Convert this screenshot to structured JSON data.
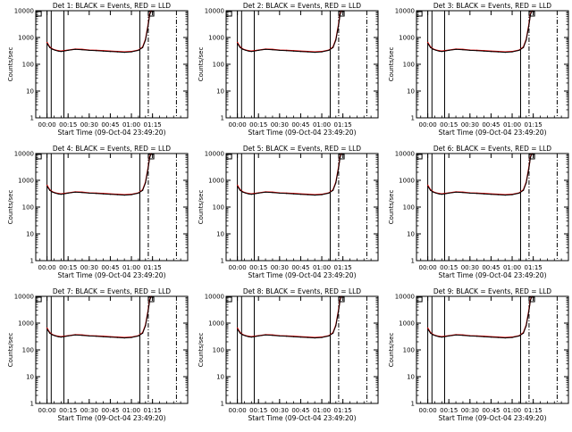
{
  "chart_data": [
    {
      "type": "line",
      "title": "Det 1: BLACK = Events, RED = LLD",
      "xlabel": "Start Time (09-Oct-04 23:49:20)",
      "ylabel": "Counts/sec",
      "yscale": "log",
      "ylim": [
        1,
        10000
      ],
      "y_ticks": [
        "1",
        "10",
        "100",
        "1000",
        "10000"
      ],
      "x_ticks": [
        "00:00",
        "00:15",
        "00:30",
        "00:45",
        "01:00",
        "01:15"
      ],
      "x": [
        0,
        2,
        4,
        6,
        8,
        10,
        12,
        15,
        20,
        25,
        30,
        35,
        40,
        45,
        50,
        55,
        60,
        65,
        68,
        70,
        72,
        73,
        74
      ],
      "series": [
        {
          "color": "#000000",
          "values": [
            600,
            420,
            360,
            330,
            310,
            300,
            310,
            330,
            360,
            350,
            330,
            320,
            310,
            300,
            290,
            280,
            290,
            330,
            420,
            800,
            3000,
            7000,
            10000
          ]
        },
        {
          "color": "#e00000",
          "values": [
            650,
            440,
            370,
            340,
            320,
            310,
            320,
            340,
            370,
            360,
            340,
            330,
            320,
            310,
            300,
            290,
            300,
            340,
            440,
            850,
            3200,
            7500,
            10000
          ]
        }
      ],
      "markers": [
        {
          "style": "solid",
          "x": 0
        },
        {
          "style": "solid",
          "x": 3
        },
        {
          "style": "solid",
          "x": 12
        },
        {
          "style": "solid",
          "x": 66
        },
        {
          "style": "dashdot",
          "x": 72
        },
        {
          "style": "dashdot",
          "x": 92
        }
      ]
    },
    {
      "type": "line",
      "title": "Det 2: BLACK = Events, RED = LLD",
      "xlabel": "Start Time (09-Oct-04 23:49:20)",
      "ylabel": "Counts/sec",
      "yscale": "log",
      "ylim": [
        1,
        10000
      ],
      "y_ticks": [
        "1",
        "10",
        "100",
        "1000",
        "10000"
      ],
      "x_ticks": [
        "00:00",
        "00:15",
        "00:30",
        "00:45",
        "01:00",
        "01:15"
      ],
      "x": [
        0,
        2,
        4,
        6,
        8,
        10,
        12,
        15,
        20,
        25,
        30,
        35,
        40,
        45,
        50,
        55,
        60,
        65,
        68,
        70,
        72,
        73,
        74
      ],
      "series": [
        {
          "color": "#000000",
          "values": [
            600,
            420,
            360,
            330,
            310,
            300,
            310,
            330,
            360,
            350,
            330,
            320,
            310,
            300,
            290,
            280,
            290,
            330,
            420,
            800,
            3000,
            7000,
            10000
          ]
        },
        {
          "color": "#e00000",
          "values": [
            650,
            440,
            370,
            340,
            320,
            310,
            320,
            340,
            370,
            360,
            340,
            330,
            320,
            310,
            300,
            290,
            300,
            340,
            440,
            850,
            3200,
            7500,
            10000
          ]
        }
      ],
      "markers": [
        {
          "style": "solid",
          "x": 0
        },
        {
          "style": "solid",
          "x": 3
        },
        {
          "style": "solid",
          "x": 12
        },
        {
          "style": "solid",
          "x": 66
        },
        {
          "style": "dashdot",
          "x": 72
        },
        {
          "style": "dashdot",
          "x": 92
        }
      ]
    },
    {
      "type": "line",
      "title": "Det 3: BLACK = Events, RED = LLD",
      "xlabel": "Start Time (09-Oct-04 23:49:20)",
      "ylabel": "Counts/sec",
      "yscale": "log",
      "ylim": [
        1,
        10000
      ],
      "y_ticks": [
        "1",
        "10",
        "100",
        "1000",
        "10000"
      ],
      "x_ticks": [
        "00:00",
        "00:15",
        "00:30",
        "00:45",
        "01:00",
        "01:15"
      ],
      "x": [
        0,
        2,
        4,
        6,
        8,
        10,
        12,
        15,
        20,
        25,
        30,
        35,
        40,
        45,
        50,
        55,
        60,
        65,
        68,
        70,
        72,
        73,
        74
      ],
      "series": [
        {
          "color": "#000000",
          "values": [
            600,
            420,
            360,
            330,
            310,
            300,
            310,
            330,
            360,
            350,
            330,
            320,
            310,
            300,
            290,
            280,
            290,
            330,
            420,
            800,
            3000,
            7000,
            10000
          ]
        },
        {
          "color": "#e00000",
          "values": [
            650,
            440,
            370,
            340,
            320,
            310,
            320,
            340,
            370,
            360,
            340,
            330,
            320,
            310,
            300,
            290,
            300,
            340,
            440,
            850,
            3200,
            7500,
            10000
          ]
        }
      ],
      "markers": [
        {
          "style": "solid",
          "x": 0
        },
        {
          "style": "solid",
          "x": 3
        },
        {
          "style": "solid",
          "x": 12
        },
        {
          "style": "solid",
          "x": 66
        },
        {
          "style": "dashdot",
          "x": 72
        },
        {
          "style": "dashdot",
          "x": 92
        }
      ]
    },
    {
      "type": "line",
      "title": "Det 4: BLACK = Events, RED = LLD",
      "xlabel": "Start Time (09-Oct-04 23:49:20)",
      "ylabel": "Counts/sec",
      "yscale": "log",
      "ylim": [
        1,
        10000
      ],
      "y_ticks": [
        "1",
        "10",
        "100",
        "1000",
        "10000"
      ],
      "x_ticks": [
        "00:00",
        "00:15",
        "00:30",
        "00:45",
        "01:00",
        "01:15"
      ],
      "x": [
        0,
        2,
        4,
        6,
        8,
        10,
        12,
        15,
        20,
        25,
        30,
        35,
        40,
        45,
        50,
        55,
        60,
        65,
        68,
        70,
        72,
        73,
        74
      ],
      "series": [
        {
          "color": "#000000",
          "values": [
            600,
            420,
            360,
            330,
            310,
            300,
            310,
            330,
            360,
            350,
            330,
            320,
            310,
            300,
            290,
            280,
            290,
            330,
            420,
            800,
            3000,
            7000,
            10000
          ]
        },
        {
          "color": "#e00000",
          "values": [
            650,
            440,
            370,
            340,
            320,
            310,
            320,
            340,
            370,
            360,
            340,
            330,
            320,
            310,
            300,
            290,
            300,
            340,
            440,
            850,
            3200,
            7500,
            10000
          ]
        }
      ],
      "markers": [
        {
          "style": "solid",
          "x": 0
        },
        {
          "style": "solid",
          "x": 3
        },
        {
          "style": "solid",
          "x": 12
        },
        {
          "style": "solid",
          "x": 66
        },
        {
          "style": "dashdot",
          "x": 72
        },
        {
          "style": "dashdot",
          "x": 92
        }
      ]
    },
    {
      "type": "line",
      "title": "Det 5: BLACK = Events, RED = LLD",
      "xlabel": "Start Time (09-Oct-04 23:49:20)",
      "ylabel": "Counts/sec",
      "yscale": "log",
      "ylim": [
        1,
        10000
      ],
      "y_ticks": [
        "1",
        "10",
        "100",
        "1000",
        "10000"
      ],
      "x_ticks": [
        "00:00",
        "00:15",
        "00:30",
        "00:45",
        "01:00",
        "01:15"
      ],
      "x": [
        0,
        2,
        4,
        6,
        8,
        10,
        12,
        15,
        20,
        25,
        30,
        35,
        40,
        45,
        50,
        55,
        60,
        65,
        68,
        70,
        72,
        73,
        74
      ],
      "series": [
        {
          "color": "#000000",
          "values": [
            600,
            420,
            360,
            330,
            310,
            300,
            310,
            330,
            360,
            350,
            330,
            320,
            310,
            300,
            290,
            280,
            290,
            330,
            420,
            800,
            3000,
            7000,
            10000
          ]
        },
        {
          "color": "#e00000",
          "values": [
            650,
            440,
            370,
            340,
            320,
            310,
            320,
            340,
            370,
            360,
            340,
            330,
            320,
            310,
            300,
            290,
            300,
            340,
            440,
            850,
            3200,
            7500,
            10000
          ]
        }
      ],
      "markers": [
        {
          "style": "solid",
          "x": 0
        },
        {
          "style": "solid",
          "x": 3
        },
        {
          "style": "solid",
          "x": 12
        },
        {
          "style": "solid",
          "x": 66
        },
        {
          "style": "dashdot",
          "x": 72
        },
        {
          "style": "dashdot",
          "x": 92
        }
      ]
    },
    {
      "type": "line",
      "title": "Det 6: BLACK = Events, RED = LLD",
      "xlabel": "Start Time (09-Oct-04 23:49:20)",
      "ylabel": "Counts/sec",
      "yscale": "log",
      "ylim": [
        1,
        10000
      ],
      "y_ticks": [
        "1",
        "10",
        "100",
        "1000",
        "10000"
      ],
      "x_ticks": [
        "00:00",
        "00:15",
        "00:30",
        "00:45",
        "01:00",
        "01:15"
      ],
      "x": [
        0,
        2,
        4,
        6,
        8,
        10,
        12,
        15,
        20,
        25,
        30,
        35,
        40,
        45,
        50,
        55,
        60,
        65,
        68,
        70,
        72,
        73,
        74
      ],
      "series": [
        {
          "color": "#000000",
          "values": [
            600,
            420,
            360,
            330,
            310,
            300,
            310,
            330,
            360,
            350,
            330,
            320,
            310,
            300,
            290,
            280,
            290,
            330,
            420,
            800,
            3000,
            7000,
            10000
          ]
        },
        {
          "color": "#e00000",
          "values": [
            650,
            440,
            370,
            340,
            320,
            310,
            320,
            340,
            370,
            360,
            340,
            330,
            320,
            310,
            300,
            290,
            300,
            340,
            440,
            850,
            3200,
            7500,
            10000
          ]
        }
      ],
      "markers": [
        {
          "style": "solid",
          "x": 0
        },
        {
          "style": "solid",
          "x": 3
        },
        {
          "style": "solid",
          "x": 12
        },
        {
          "style": "solid",
          "x": 66
        },
        {
          "style": "dashdot",
          "x": 72
        },
        {
          "style": "dashdot",
          "x": 92
        }
      ]
    },
    {
      "type": "line",
      "title": "Det 7: BLACK = Events, RED = LLD",
      "xlabel": "Start Time (09-Oct-04 23:49:20)",
      "ylabel": "Counts/sec",
      "yscale": "log",
      "ylim": [
        1,
        10000
      ],
      "y_ticks": [
        "1",
        "10",
        "100",
        "1000",
        "10000"
      ],
      "x_ticks": [
        "00:00",
        "00:15",
        "00:30",
        "00:45",
        "01:00",
        "01:15"
      ],
      "x": [
        0,
        2,
        4,
        6,
        8,
        10,
        12,
        15,
        20,
        25,
        30,
        35,
        40,
        45,
        50,
        55,
        60,
        65,
        68,
        70,
        72,
        73,
        74
      ],
      "series": [
        {
          "color": "#000000",
          "values": [
            600,
            420,
            360,
            330,
            310,
            300,
            310,
            330,
            360,
            350,
            330,
            320,
            310,
            300,
            290,
            280,
            290,
            330,
            420,
            800,
            3000,
            7000,
            10000
          ]
        },
        {
          "color": "#e00000",
          "values": [
            650,
            440,
            370,
            340,
            320,
            310,
            320,
            340,
            370,
            360,
            340,
            330,
            320,
            310,
            300,
            290,
            300,
            340,
            440,
            850,
            3200,
            7500,
            10000
          ]
        }
      ],
      "markers": [
        {
          "style": "solid",
          "x": 0
        },
        {
          "style": "solid",
          "x": 3
        },
        {
          "style": "solid",
          "x": 12
        },
        {
          "style": "solid",
          "x": 66
        },
        {
          "style": "dashdot",
          "x": 72
        },
        {
          "style": "dashdot",
          "x": 92
        }
      ]
    },
    {
      "type": "line",
      "title": "Det 8: BLACK = Events, RED = LLD",
      "xlabel": "Start Time (09-Oct-04 23:49:20)",
      "ylabel": "Counts/sec",
      "yscale": "log",
      "ylim": [
        1,
        10000
      ],
      "y_ticks": [
        "1",
        "10",
        "100",
        "1000",
        "10000"
      ],
      "x_ticks": [
        "00:00",
        "00:15",
        "00:30",
        "00:45",
        "01:00",
        "01:15"
      ],
      "x": [
        0,
        2,
        4,
        6,
        8,
        10,
        12,
        15,
        20,
        25,
        30,
        35,
        40,
        45,
        50,
        55,
        60,
        65,
        68,
        70,
        72,
        73,
        74
      ],
      "series": [
        {
          "color": "#000000",
          "values": [
            600,
            420,
            360,
            330,
            310,
            300,
            310,
            330,
            360,
            350,
            330,
            320,
            310,
            300,
            290,
            280,
            290,
            330,
            420,
            800,
            3000,
            7000,
            10000
          ]
        },
        {
          "color": "#e00000",
          "values": [
            650,
            440,
            370,
            340,
            320,
            310,
            320,
            340,
            370,
            360,
            340,
            330,
            320,
            310,
            300,
            290,
            300,
            340,
            440,
            850,
            3200,
            7500,
            10000
          ]
        }
      ],
      "markers": [
        {
          "style": "solid",
          "x": 0
        },
        {
          "style": "solid",
          "x": 3
        },
        {
          "style": "solid",
          "x": 12
        },
        {
          "style": "solid",
          "x": 66
        },
        {
          "style": "dashdot",
          "x": 72
        },
        {
          "style": "dashdot",
          "x": 92
        }
      ]
    },
    {
      "type": "line",
      "title": "Det 9: BLACK = Events, RED = LLD",
      "xlabel": "Start Time (09-Oct-04 23:49:20)",
      "ylabel": "Counts/sec",
      "yscale": "log",
      "ylim": [
        1,
        10000
      ],
      "y_ticks": [
        "1",
        "10",
        "100",
        "1000",
        "10000"
      ],
      "x_ticks": [
        "00:00",
        "00:15",
        "00:30",
        "00:45",
        "01:00",
        "01:15"
      ],
      "x": [
        0,
        2,
        4,
        6,
        8,
        10,
        12,
        15,
        20,
        25,
        30,
        35,
        40,
        45,
        50,
        55,
        60,
        65,
        68,
        70,
        72,
        73,
        74
      ],
      "series": [
        {
          "color": "#000000",
          "values": [
            600,
            420,
            360,
            330,
            310,
            300,
            310,
            330,
            360,
            350,
            330,
            320,
            310,
            300,
            290,
            280,
            290,
            330,
            420,
            800,
            3000,
            7000,
            10000
          ]
        },
        {
          "color": "#e00000",
          "values": [
            650,
            440,
            370,
            340,
            320,
            310,
            320,
            340,
            370,
            360,
            340,
            330,
            320,
            310,
            300,
            290,
            300,
            340,
            440,
            850,
            3200,
            7500,
            10000
          ]
        }
      ],
      "markers": [
        {
          "style": "solid",
          "x": 0
        },
        {
          "style": "solid",
          "x": 3
        },
        {
          "style": "solid",
          "x": 12
        },
        {
          "style": "solid",
          "x": 66
        },
        {
          "style": "dashdot",
          "x": 72
        },
        {
          "style": "dashdot",
          "x": 92
        }
      ]
    }
  ]
}
